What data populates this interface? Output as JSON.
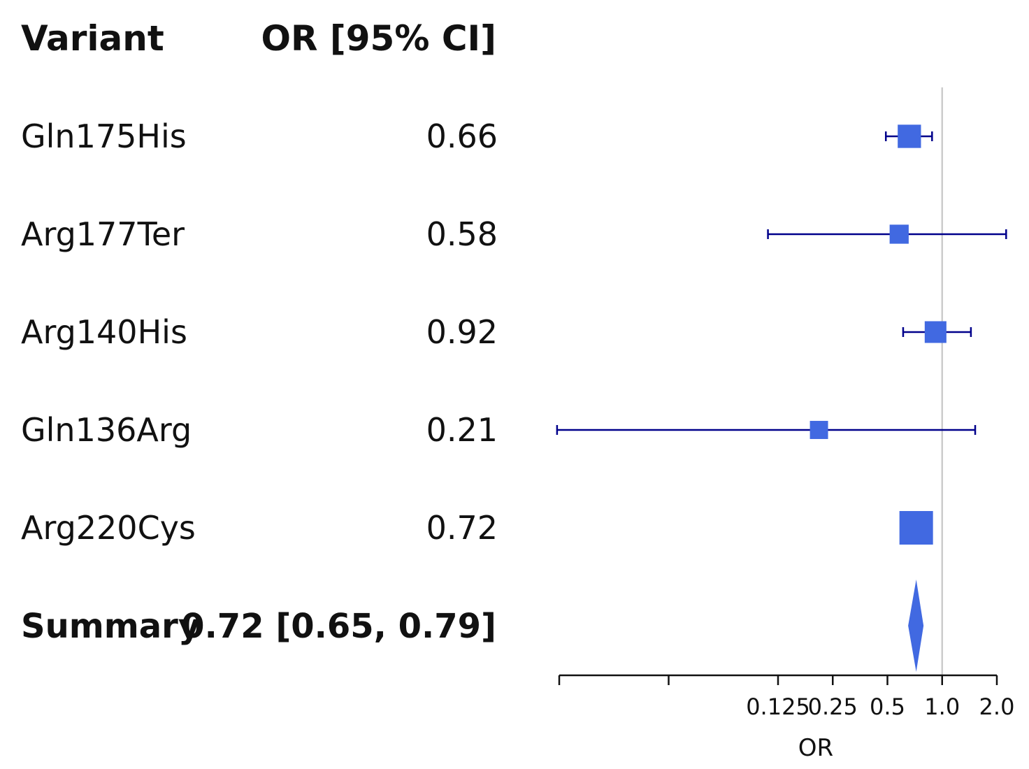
{
  "chart_data": {
    "type": "forest",
    "col_headers": {
      "label": "Variant",
      "estimate": "OR [95% CI]"
    },
    "xlabel": "OR",
    "x_scale": "log2",
    "xlim": [
      0.0078125,
      2.0
    ],
    "x_ticks": [
      0.0078125,
      0.03125,
      0.125,
      0.25,
      0.5,
      1.0,
      2.0
    ],
    "x_tick_labels": [
      "",
      "",
      "0.125",
      "0.25",
      "0.5",
      "1.0",
      "2.0"
    ],
    "reference_line": 1.0,
    "rows": [
      {
        "label": "Gln175His",
        "or_text": "0.66",
        "or": 0.66,
        "lower": 0.49,
        "upper": 0.88,
        "weight": 0.35
      },
      {
        "label": "Arg177Ter",
        "or_text": "0.58",
        "or": 0.58,
        "lower": 0.11,
        "upper": 2.25,
        "weight": 0.18
      },
      {
        "label": "Arg140His",
        "or_text": "0.92",
        "or": 0.92,
        "lower": 0.61,
        "upper": 1.44,
        "weight": 0.28
      },
      {
        "label": "Gln136Arg",
        "or_text": "0.21",
        "or": 0.21,
        "lower": 0.0076,
        "upper": 1.52,
        "weight": 0.15
      },
      {
        "label": "Arg220Cys",
        "or_text": "0.72",
        "or": 0.72,
        "lower": 0.66,
        "upper": 0.79,
        "weight": 1.0
      }
    ],
    "summary": {
      "label": "Summary",
      "text": "0.72 [0.65, 0.79]",
      "or": 0.72,
      "lower": 0.65,
      "upper": 0.79
    },
    "colors": {
      "marker": "#4169e1",
      "ci_line": "#00008b",
      "ref_line": "#cccccc",
      "axis": "#111111"
    }
  }
}
